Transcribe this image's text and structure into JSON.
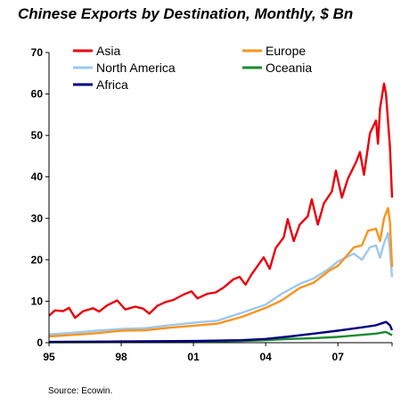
{
  "title": "Chinese Exports by Destination, Monthly, $ Bn",
  "source": "Source: Ecowin.",
  "chart_data": {
    "type": "line",
    "title": "Chinese Exports by Destination, Monthly, $ Bn",
    "xlabel": "",
    "ylabel": "",
    "x_range": [
      "1995-01",
      "2009-04"
    ],
    "x_ticks": [
      "95",
      "98",
      "01",
      "04",
      "07"
    ],
    "x_tick_values": [
      "1995-01",
      "1998-01",
      "2001-01",
      "2004-01",
      "2007-01"
    ],
    "ylim": [
      0,
      70
    ],
    "y_ticks": [
      0,
      10,
      20,
      30,
      40,
      50,
      60,
      70
    ],
    "grid": false,
    "legend": "top, two columns",
    "series": [
      {
        "name": "Asia",
        "color": "#e8000b",
        "points": [
          [
            "1995-01",
            6.5
          ],
          [
            "1995-04",
            7.8
          ],
          [
            "1995-08",
            7.6
          ],
          [
            "1995-11",
            8.4
          ],
          [
            "1996-02",
            6.0
          ],
          [
            "1996-06",
            7.6
          ],
          [
            "1996-11",
            8.3
          ],
          [
            "1997-02",
            7.5
          ],
          [
            "1997-06",
            9.0
          ],
          [
            "1997-11",
            10.2
          ],
          [
            "1998-03",
            8.0
          ],
          [
            "1998-08",
            8.7
          ],
          [
            "1998-12",
            8.2
          ],
          [
            "1999-03",
            7.0
          ],
          [
            "1999-07",
            8.9
          ],
          [
            "1999-11",
            9.8
          ],
          [
            "2000-03",
            10.3
          ],
          [
            "2000-08",
            11.6
          ],
          [
            "2000-12",
            12.4
          ],
          [
            "2001-03",
            10.7
          ],
          [
            "2001-08",
            11.8
          ],
          [
            "2001-12",
            12.1
          ],
          [
            "2002-04",
            13.3
          ],
          [
            "2002-09",
            15.3
          ],
          [
            "2002-12",
            15.9
          ],
          [
            "2003-03",
            14.0
          ],
          [
            "2003-06",
            16.5
          ],
          [
            "2003-10",
            19.2
          ],
          [
            "2003-12",
            20.6
          ],
          [
            "2004-03",
            17.8
          ],
          [
            "2004-06",
            22.8
          ],
          [
            "2004-10",
            25.4
          ],
          [
            "2004-12",
            29.8
          ],
          [
            "2005-03",
            24.5
          ],
          [
            "2005-06",
            28.5
          ],
          [
            "2005-10",
            30.5
          ],
          [
            "2005-12",
            34.6
          ],
          [
            "2006-03",
            28.5
          ],
          [
            "2006-06",
            33.6
          ],
          [
            "2006-10",
            36.5
          ],
          [
            "2006-12",
            41.5
          ],
          [
            "2007-03",
            35.0
          ],
          [
            "2007-06",
            39.6
          ],
          [
            "2007-10",
            43.5
          ],
          [
            "2007-12",
            46.0
          ],
          [
            "2008-02",
            40.5
          ],
          [
            "2008-05",
            50.5
          ],
          [
            "2008-08",
            53.6
          ],
          [
            "2008-09",
            48.0
          ],
          [
            "2008-10",
            56.5
          ],
          [
            "2008-12",
            62.5
          ],
          [
            "2009-01",
            60.0
          ],
          [
            "2009-03",
            47.0
          ],
          [
            "2009-04",
            35.0
          ]
        ]
      },
      {
        "name": "Europe",
        "color": "#f7941d",
        "points": [
          [
            "1995-01",
            1.5
          ],
          [
            "1996-01",
            1.9
          ],
          [
            "1997-01",
            2.3
          ],
          [
            "1998-01",
            2.9
          ],
          [
            "1999-01",
            3.0
          ],
          [
            "2000-01",
            3.6
          ],
          [
            "2001-01",
            4.1
          ],
          [
            "2002-01",
            4.6
          ],
          [
            "2003-01",
            6.2
          ],
          [
            "2004-01",
            8.4
          ],
          [
            "2004-09",
            10.2
          ],
          [
            "2005-06",
            13.2
          ],
          [
            "2006-01",
            14.5
          ],
          [
            "2006-09",
            17.5
          ],
          [
            "2007-01",
            18.5
          ],
          [
            "2007-09",
            23.0
          ],
          [
            "2008-01",
            23.5
          ],
          [
            "2008-04",
            27.0
          ],
          [
            "2008-08",
            27.5
          ],
          [
            "2008-10",
            24.5
          ],
          [
            "2008-12",
            30.0
          ],
          [
            "2009-02",
            32.5
          ],
          [
            "2009-03",
            29.0
          ],
          [
            "2009-04",
            18.2
          ]
        ]
      },
      {
        "name": "North America",
        "color": "#9dc8ee",
        "points": [
          [
            "1995-01",
            2.0
          ],
          [
            "1996-01",
            2.4
          ],
          [
            "1997-01",
            2.9
          ],
          [
            "1998-01",
            3.3
          ],
          [
            "1999-01",
            3.5
          ],
          [
            "2000-01",
            4.2
          ],
          [
            "2001-01",
            4.8
          ],
          [
            "2002-01",
            5.3
          ],
          [
            "2003-01",
            7.2
          ],
          [
            "2004-01",
            9.2
          ],
          [
            "2004-09",
            11.8
          ],
          [
            "2005-06",
            14.2
          ],
          [
            "2006-01",
            15.5
          ],
          [
            "2006-09",
            18.0
          ],
          [
            "2007-01",
            19.6
          ],
          [
            "2007-09",
            21.5
          ],
          [
            "2008-01",
            20.0
          ],
          [
            "2008-05",
            23.0
          ],
          [
            "2008-08",
            23.5
          ],
          [
            "2008-10",
            20.5
          ],
          [
            "2008-12",
            24.0
          ],
          [
            "2009-02",
            26.5
          ],
          [
            "2009-03",
            22.0
          ],
          [
            "2009-04",
            15.8
          ]
        ]
      },
      {
        "name": "Oceania",
        "color": "#1a8a2e",
        "points": [
          [
            "1995-01",
            0.1
          ],
          [
            "1998-01",
            0.15
          ],
          [
            "2001-01",
            0.25
          ],
          [
            "2003-01",
            0.4
          ],
          [
            "2004-01",
            0.6
          ],
          [
            "2005-01",
            0.9
          ],
          [
            "2006-01",
            1.1
          ],
          [
            "2007-01",
            1.4
          ],
          [
            "2008-01",
            1.9
          ],
          [
            "2008-08",
            2.2
          ],
          [
            "2009-01",
            2.6
          ],
          [
            "2009-04",
            1.8
          ]
        ]
      },
      {
        "name": "Africa",
        "color": "#000080",
        "points": [
          [
            "1995-01",
            0.2
          ],
          [
            "1998-01",
            0.3
          ],
          [
            "2001-01",
            0.4
          ],
          [
            "2003-01",
            0.6
          ],
          [
            "2004-01",
            0.9
          ],
          [
            "2005-01",
            1.5
          ],
          [
            "2006-01",
            2.2
          ],
          [
            "2007-01",
            2.9
          ],
          [
            "2008-01",
            3.7
          ],
          [
            "2008-08",
            4.2
          ],
          [
            "2009-01",
            5.0
          ],
          [
            "2009-03",
            4.2
          ],
          [
            "2009-04",
            3.0
          ]
        ]
      }
    ]
  }
}
